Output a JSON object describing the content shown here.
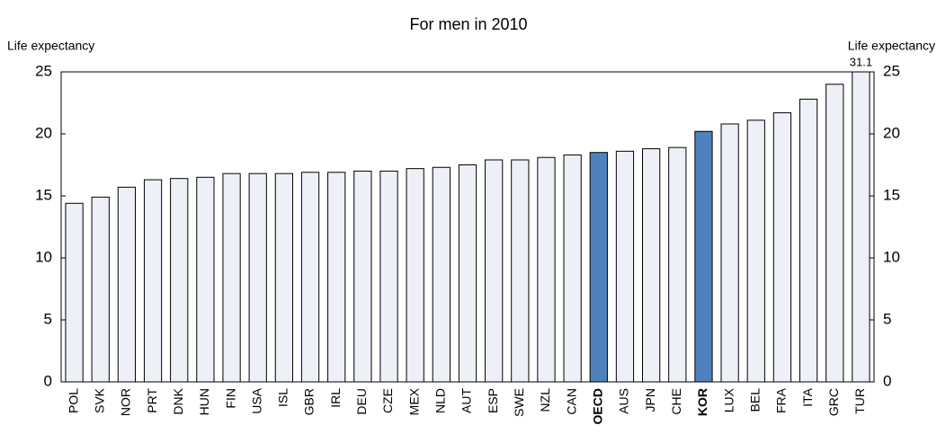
{
  "chart_data": {
    "type": "bar",
    "title": "For men in 2010",
    "y_label": "Life expectancy",
    "y2_label": "Life expectancy",
    "categories": [
      "POL",
      "SVK",
      "NOR",
      "PRT",
      "DNK",
      "HUN",
      "FIN",
      "USA",
      "ISL",
      "GBR",
      "IRL",
      "DEU",
      "CZE",
      "MEX",
      "NLD",
      "AUT",
      "ESP",
      "SWE",
      "NZL",
      "CAN",
      "OECD",
      "AUS",
      "JPN",
      "CHE",
      "KOR",
      "LUX",
      "BEL",
      "FRA",
      "ITA",
      "GRC",
      "TUR"
    ],
    "values": [
      14.4,
      14.9,
      15.7,
      16.3,
      16.4,
      16.5,
      16.8,
      16.8,
      16.8,
      16.9,
      16.9,
      17.0,
      17.0,
      17.2,
      17.3,
      17.5,
      17.9,
      17.9,
      18.1,
      18.3,
      18.5,
      18.6,
      18.8,
      18.9,
      20.2,
      20.8,
      21.1,
      21.7,
      22.8,
      24.0,
      31.1
    ],
    "value_labels": [
      null,
      null,
      null,
      null,
      null,
      null,
      null,
      null,
      null,
      null,
      null,
      null,
      null,
      null,
      null,
      null,
      null,
      null,
      null,
      null,
      null,
      null,
      null,
      null,
      null,
      null,
      null,
      null,
      null,
      null,
      "31.1"
    ],
    "colors": [
      "#eef0f8",
      "#eef0f8",
      "#eef0f8",
      "#eef0f8",
      "#eef0f8",
      "#eef0f8",
      "#eef0f8",
      "#eef0f8",
      "#eef0f8",
      "#eef0f8",
      "#eef0f8",
      "#eef0f8",
      "#eef0f8",
      "#eef0f8",
      "#eef0f8",
      "#eef0f8",
      "#eef0f8",
      "#eef0f8",
      "#eef0f8",
      "#eef0f8",
      "#4f81bd",
      "#eef0f8",
      "#eef0f8",
      "#eef0f8",
      "#4f81bd",
      "#eef0f8",
      "#eef0f8",
      "#eef0f8",
      "#eef0f8",
      "#eef0f8",
      "#eef0f8"
    ],
    "highlight_color": "#4f81bd",
    "ylim": [
      0,
      25
    ],
    "yticks": [
      0,
      5,
      10,
      15,
      20,
      25
    ],
    "y2lim": [
      0,
      25
    ],
    "y2ticks": [
      0,
      5,
      10,
      15,
      20,
      25
    ]
  }
}
